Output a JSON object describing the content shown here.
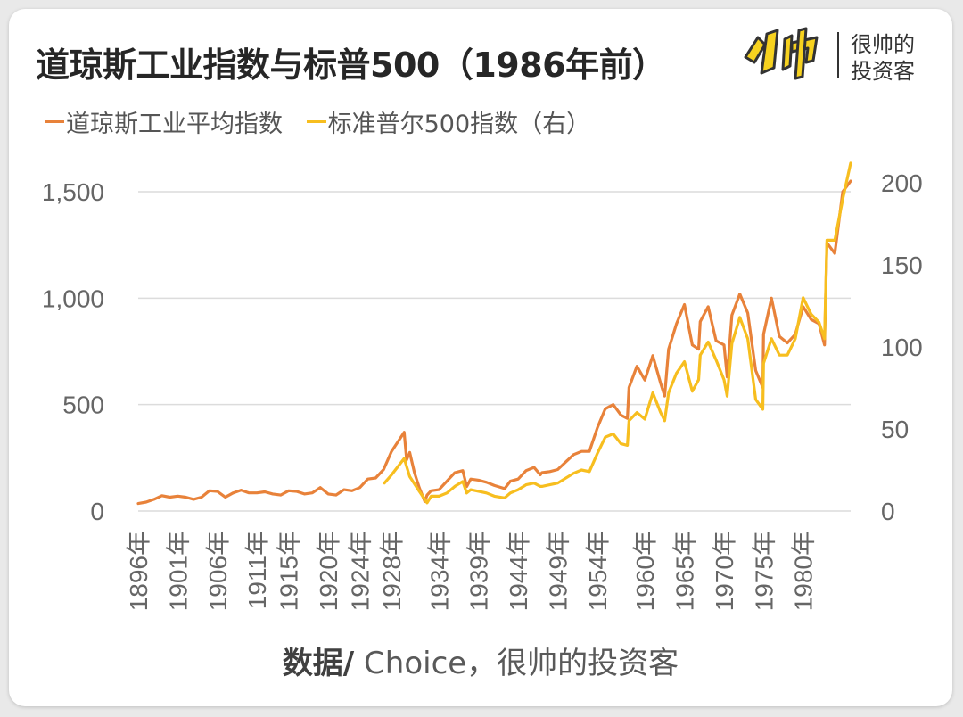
{
  "title": "道琼斯工业指数与标普500（1986年前）",
  "logo": {
    "mark_icon": "shuai-logo-icon",
    "text_line1": "很帅的",
    "text_line2": "投资客"
  },
  "source": {
    "prefix": "数据/",
    "text": " Choice，很帅的投资客"
  },
  "colors": {
    "dow": "#e8823a",
    "sp500": "#f7be1f",
    "grid": "#dcdcdc",
    "axis_text": "#666666"
  },
  "chart_data": {
    "type": "line",
    "title": "道琼斯工业指数与标普500（1986年前）",
    "legend_position": "top-left",
    "grid": true,
    "x_range": [
      1896,
      1986
    ],
    "x_tick_labels": [
      "1896年",
      "1901年",
      "1906年",
      "1911年",
      "1915年",
      "1920年",
      "1924年",
      "1928年",
      "1934年",
      "1939年",
      "1944年",
      "1949年",
      "1954年",
      "1960年",
      "1965年",
      "1970年",
      "1975年",
      "1980年"
    ],
    "x_tick_years": [
      1896,
      1901,
      1906,
      1911,
      1915,
      1920,
      1924,
      1928,
      1934,
      1939,
      1944,
      1949,
      1954,
      1960,
      1965,
      1970,
      1975,
      1980
    ],
    "y_left": {
      "range": [
        0,
        1500
      ],
      "ticks": [
        0,
        500,
        1000,
        1500
      ],
      "tick_labels": [
        "0",
        "500",
        "1,000",
        "1,500"
      ]
    },
    "y_right": {
      "range": [
        0,
        200
      ],
      "ticks": [
        0,
        50,
        100,
        150,
        200
      ],
      "tick_labels": [
        "0",
        "50",
        "100",
        "150",
        "200"
      ]
    },
    "series": [
      {
        "name": "道琼斯工业平均指数",
        "axis": "left",
        "color": "#e8823a",
        "x": [
          1896,
          1897,
          1898,
          1899,
          1900,
          1901,
          1902,
          1903,
          1904,
          1905,
          1906,
          1907,
          1908,
          1909,
          1910,
          1911,
          1912,
          1913,
          1914,
          1915,
          1916,
          1917,
          1918,
          1919,
          1920,
          1921,
          1922,
          1923,
          1924,
          1925,
          1926,
          1927,
          1928,
          1929.6,
          1929.9,
          1930.3,
          1930.9,
          1931.5,
          1932.2,
          1932.5,
          1933,
          1934,
          1935,
          1936,
          1937,
          1937.5,
          1938,
          1939,
          1940,
          1941,
          1942.3,
          1943,
          1944,
          1945,
          1946,
          1946.8,
          1947,
          1948,
          1949,
          1950,
          1951,
          1952,
          1953,
          1954,
          1955,
          1956,
          1957,
          1957.8,
          1958,
          1959,
          1960,
          1961,
          1962,
          1962.5,
          1963,
          1964,
          1965,
          1966,
          1966.8,
          1967,
          1968,
          1969,
          1970,
          1970.4,
          1971,
          1972,
          1973,
          1974,
          1974.9,
          1975,
          1976,
          1977,
          1978,
          1979,
          1980,
          1981,
          1982,
          1982.7,
          1983,
          1984,
          1985,
          1986
        ],
        "values": [
          35,
          42,
          55,
          72,
          65,
          70,
          65,
          55,
          65,
          95,
          92,
          65,
          85,
          98,
          85,
          85,
          90,
          80,
          75,
          95,
          92,
          80,
          85,
          110,
          80,
          75,
          100,
          95,
          110,
          150,
          155,
          195,
          280,
          370,
          240,
          275,
          180,
          110,
          45,
          75,
          95,
          100,
          140,
          180,
          190,
          115,
          150,
          145,
          135,
          120,
          105,
          140,
          150,
          190,
          205,
          170,
          180,
          185,
          195,
          230,
          265,
          280,
          280,
          390,
          480,
          500,
          450,
          435,
          580,
          680,
          615,
          730,
          600,
          540,
          760,
          880,
          970,
          780,
          760,
          890,
          960,
          800,
          780,
          630,
          920,
          1020,
          930,
          660,
          580,
          830,
          1000,
          820,
          790,
          830,
          960,
          900,
          880,
          780,
          1260,
          1210,
          1500,
          1550
        ]
      },
      {
        "name": "标准普尔500指数（右）",
        "axis": "right",
        "color": "#f7be1f",
        "x": [
          1927.1,
          1928,
          1929.6,
          1930.3,
          1931.5,
          1932.5,
          1933,
          1934,
          1935,
          1936,
          1937,
          1937.5,
          1938,
          1939,
          1940,
          1941,
          1942.3,
          1943,
          1944,
          1945,
          1946,
          1946.8,
          1947,
          1948,
          1949,
          1950,
          1951,
          1952,
          1953,
          1954,
          1955,
          1956,
          1957,
          1957.8,
          1958,
          1959,
          1960,
          1961,
          1962,
          1962.5,
          1963,
          1964,
          1965,
          1966,
          1966.8,
          1967,
          1968,
          1969,
          1970,
          1970.4,
          1971,
          1972,
          1973,
          1974,
          1974.9,
          1975,
          1976,
          1977,
          1978,
          1979,
          1980,
          1981,
          1982,
          1982.7,
          1983,
          1984,
          1985,
          1986
        ],
        "values": [
          17,
          22,
          32,
          21,
          12,
          5,
          9,
          9,
          11,
          15,
          18,
          11,
          13,
          12,
          11,
          9,
          8,
          11,
          13,
          16,
          17,
          15,
          15,
          16,
          17,
          20,
          23,
          25,
          24,
          35,
          45,
          47,
          41,
          40,
          55,
          60,
          56,
          72,
          60,
          55,
          72,
          84,
          91,
          73,
          80,
          95,
          103,
          92,
          80,
          70,
          102,
          118,
          105,
          68,
          62,
          90,
          105,
          95,
          95,
          105,
          130,
          120,
          115,
          105,
          165,
          165,
          190,
          212
        ]
      }
    ]
  }
}
